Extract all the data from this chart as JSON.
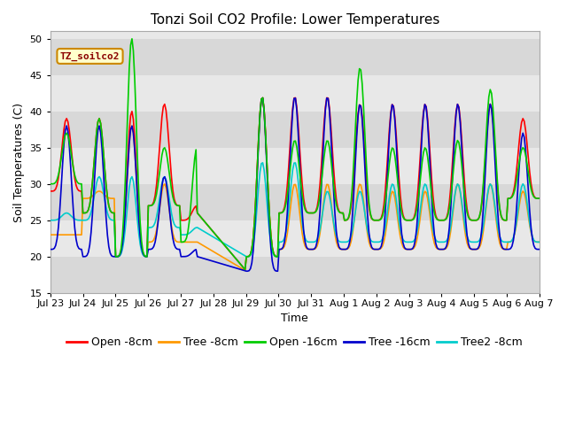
{
  "title": "Tonzi Soil CO2 Profile: Lower Temperatures",
  "xlabel": "Time",
  "ylabel": "Soil Temperatures (C)",
  "ylim": [
    15,
    51
  ],
  "yticks": [
    15,
    20,
    25,
    30,
    35,
    40,
    45,
    50
  ],
  "annotation": "TZ_soilco2",
  "series_colors": {
    "open_8cm": "#ff0000",
    "tree_8cm": "#ff9900",
    "open_16cm": "#00cc00",
    "tree_16cm": "#0000cc",
    "tree2_8cm": "#00cccc"
  },
  "series_labels": {
    "open_8cm": "Open -8cm",
    "tree_8cm": "Tree -8cm",
    "open_16cm": "Open -16cm",
    "tree_16cm": "Tree -16cm",
    "tree2_8cm": "Tree2 -8cm"
  },
  "xtick_labels": [
    "Jul 23",
    "Jul 24",
    "Jul 25",
    "Jul 26",
    "Jul 27",
    "Jul 28",
    "Jul 29",
    "Jul 30",
    "Jul 31",
    "Aug 1",
    "Aug 2",
    "Aug 3",
    "Aug 4",
    "Aug 5",
    "Aug 6",
    "Aug 7"
  ],
  "num_days": 16,
  "title_fontsize": 11,
  "axis_label_fontsize": 9,
  "tick_fontsize": 8,
  "legend_fontsize": 9,
  "line_width": 1.2,
  "fig_bg": "#ffffff",
  "plot_bg": "#e8e8e8",
  "grid_color": "#ffffff",
  "band_colors": [
    "#e0e0e0",
    "#ececec"
  ]
}
